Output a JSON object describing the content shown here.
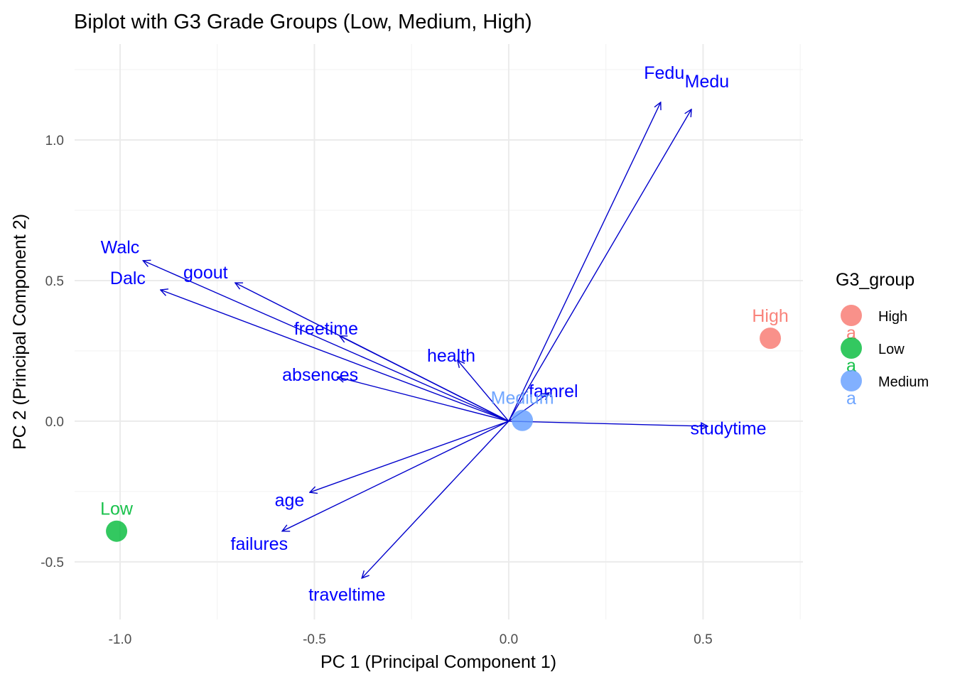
{
  "chart_data": {
    "type": "scatter",
    "subtype": "pca-biplot",
    "title": "Biplot with G3 Grade Groups (Low, Medium, High)",
    "xlabel": "PC 1 (Principal Component 1)",
    "ylabel": "PC 2 (Principal Component 2)",
    "xlim": [
      -1.117,
      0.757
    ],
    "ylim": [
      -0.705,
      1.341
    ],
    "xticks": [
      -1.0,
      -0.5,
      0.0,
      0.5
    ],
    "xtick_labels": [
      "-1.0",
      "-0.5",
      "0.0",
      "0.5"
    ],
    "yticks": [
      -0.5,
      0.0,
      0.5,
      1.0
    ],
    "ytick_labels": [
      "-0.5",
      "0.0",
      "0.5",
      "1.0"
    ],
    "x_minor": [
      -0.75,
      -0.25,
      0.25,
      0.75
    ],
    "y_minor": [
      -0.25,
      0.25,
      0.75,
      1.25
    ],
    "grid": true,
    "arrow_color": "#0000cc",
    "label_color": "#0000ff",
    "loadings": [
      {
        "name": "Fedu",
        "x": 0.391,
        "y": 1.134,
        "lx": 0.4,
        "ly": 1.24
      },
      {
        "name": "Medu",
        "x": 0.47,
        "y": 1.109,
        "lx": 0.51,
        "ly": 1.21
      },
      {
        "name": "Walc",
        "x": -0.941,
        "y": 0.571,
        "lx": -1.0,
        "ly": 0.62
      },
      {
        "name": "Dalc",
        "x": -0.896,
        "y": 0.467,
        "lx": -0.98,
        "ly": 0.51
      },
      {
        "name": "goout",
        "x": -0.704,
        "y": 0.492,
        "lx": -0.78,
        "ly": 0.53
      },
      {
        "name": "freetime",
        "x": -0.435,
        "y": 0.303,
        "lx": -0.47,
        "ly": 0.33
      },
      {
        "name": "health",
        "x": -0.132,
        "y": 0.217,
        "lx": -0.148,
        "ly": 0.235
      },
      {
        "name": "absences",
        "x": -0.441,
        "y": 0.157,
        "lx": -0.485,
        "ly": 0.166
      },
      {
        "name": "famrel",
        "x": 0.104,
        "y": 0.101,
        "lx": 0.115,
        "ly": 0.108
      },
      {
        "name": "studytime",
        "x": 0.512,
        "y": -0.018,
        "lx": 0.565,
        "ly": -0.024
      },
      {
        "name": "age",
        "x": -0.512,
        "y": -0.253,
        "lx": -0.564,
        "ly": -0.28
      },
      {
        "name": "failures",
        "x": -0.583,
        "y": -0.391,
        "lx": -0.642,
        "ly": -0.435
      },
      {
        "name": "traveltime",
        "x": -0.378,
        "y": -0.558,
        "lx": -0.416,
        "ly": -0.615
      }
    ],
    "groups": [
      {
        "name": "High",
        "x": 0.673,
        "y": 0.295,
        "color": "#F8766D"
      },
      {
        "name": "Low",
        "x": -1.009,
        "y": -0.391,
        "color": "#00BA38"
      },
      {
        "name": "Medium",
        "x": 0.035,
        "y": 0.003,
        "color": "#619CFF"
      }
    ],
    "legend": {
      "title": "G3_group",
      "position": "right",
      "entries": [
        "High",
        "Low",
        "Medium"
      ],
      "key_glyph_letter": "a"
    }
  }
}
